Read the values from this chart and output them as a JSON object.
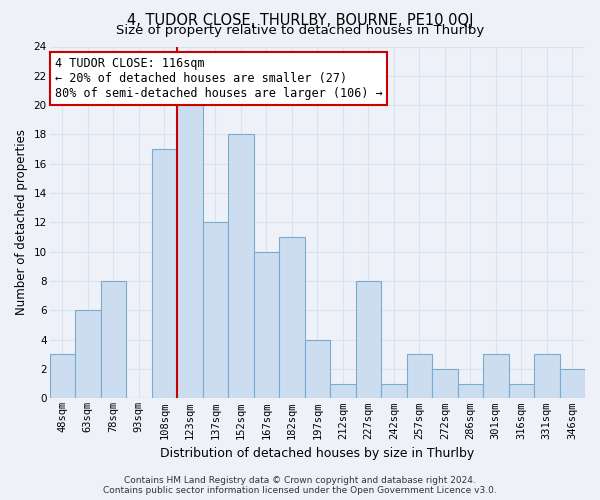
{
  "title": "4, TUDOR CLOSE, THURLBY, BOURNE, PE10 0QJ",
  "subtitle": "Size of property relative to detached houses in Thurlby",
  "xlabel": "Distribution of detached houses by size in Thurlby",
  "ylabel": "Number of detached properties",
  "bar_color": "#ccddf0",
  "bar_edge_color": "#7aaad0",
  "bin_labels": [
    "48sqm",
    "63sqm",
    "78sqm",
    "93sqm",
    "108sqm",
    "123sqm",
    "137sqm",
    "152sqm",
    "167sqm",
    "182sqm",
    "197sqm",
    "212sqm",
    "227sqm",
    "242sqm",
    "257sqm",
    "272sqm",
    "286sqm",
    "301sqm",
    "316sqm",
    "331sqm",
    "346sqm"
  ],
  "bin_values": [
    3,
    6,
    8,
    0,
    17,
    20,
    12,
    18,
    10,
    11,
    4,
    1,
    8,
    1,
    3,
    2,
    1,
    3,
    1,
    3,
    2
  ],
  "ylim": [
    0,
    24
  ],
  "yticks": [
    0,
    2,
    4,
    6,
    8,
    10,
    12,
    14,
    16,
    18,
    20,
    22,
    24
  ],
  "vline_color": "#cc0000",
  "annotation_line1": "4 TUDOR CLOSE: 116sqm",
  "annotation_line2": "← 20% of detached houses are smaller (27)",
  "annotation_line3": "80% of semi-detached houses are larger (106) →",
  "annotation_box_color": "#ffffff",
  "annotation_box_edge": "#cc0000",
  "footer_line1": "Contains HM Land Registry data © Crown copyright and database right 2024.",
  "footer_line2": "Contains public sector information licensed under the Open Government Licence v3.0.",
  "background_color": "#eef2f8",
  "grid_color": "#d8e2f0",
  "title_fontsize": 10.5,
  "subtitle_fontsize": 9.5,
  "ylabel_fontsize": 8.5,
  "xlabel_fontsize": 9,
  "tick_fontsize": 7.5,
  "annotation_fontsize": 8.5,
  "footer_fontsize": 6.5
}
